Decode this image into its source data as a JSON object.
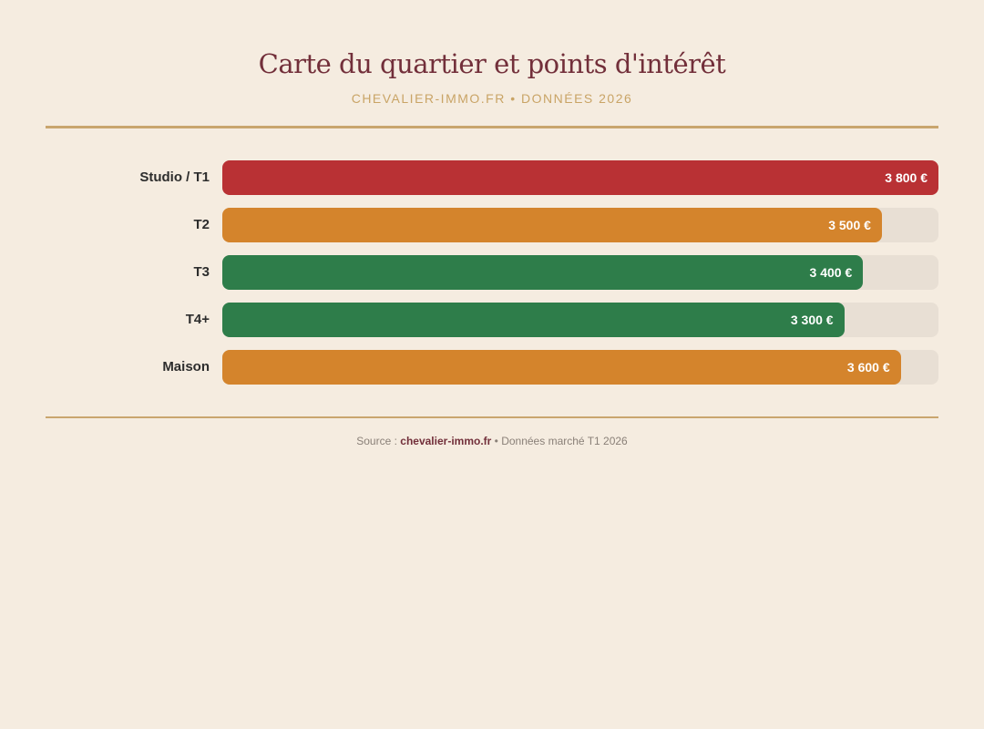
{
  "header": {
    "title": "Carte du quartier et points d'intérêt",
    "subtitle": "CHEVALIER-IMMO.FR • DONNÉES 2026"
  },
  "footer": {
    "prefix": "Source : ",
    "brand": "chevalier-immo.fr",
    "suffix": " • Données marché T1 2026"
  },
  "colors": {
    "background": "#f5ece0",
    "title": "#722f3a",
    "accent": "#c9a56e",
    "track": "#e8dfd4",
    "red": "#b93134",
    "orange": "#d4842c",
    "green": "#2e7d4a"
  },
  "chart_data": {
    "type": "bar",
    "orientation": "horizontal",
    "title": "Carte du quartier et points d'intérêt",
    "subtitle": "CHEVALIER-IMMO.FR • DONNÉES 2026",
    "categories": [
      "Studio / T1",
      "T2",
      "T3",
      "T4+",
      "Maison"
    ],
    "values": [
      3800,
      3500,
      3400,
      3300,
      3600
    ],
    "value_labels": [
      "3 800 €",
      "3 500 €",
      "3 400 €",
      "3 300 €",
      "3 600 €"
    ],
    "bar_colors": [
      "#b93134",
      "#d4842c",
      "#2e7d4a",
      "#2e7d4a",
      "#d4842c"
    ],
    "xlabel": "",
    "ylabel": "",
    "xlim": [
      0,
      3800
    ],
    "grid": false,
    "legend": null,
    "unit": "€",
    "source": "Source : chevalier-immo.fr • Données marché T1 2026"
  }
}
